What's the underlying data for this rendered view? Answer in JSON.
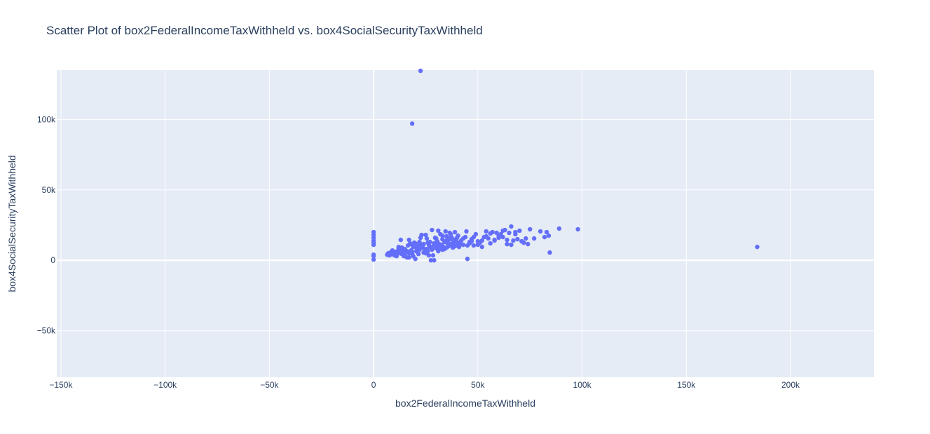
{
  "chart_data": {
    "type": "scatter",
    "title": "Scatter Plot of box2FederalIncomeTaxWithheld vs. box4SocialSecurityTaxWithheld",
    "xlabel": "box2FederalIncomeTaxWithheld",
    "ylabel": "box4SocialSecurityTaxWithheld",
    "xlim": [
      -152000,
      240000
    ],
    "ylim": [
      -83000,
      135000
    ],
    "x_ticks": [
      -150000,
      -100000,
      -50000,
      0,
      50000,
      100000,
      150000,
      200000
    ],
    "x_tick_labels": [
      "−150k",
      "−100k",
      "−50k",
      "0",
      "50k",
      "100k",
      "150k",
      "200k"
    ],
    "y_ticks": [
      -50000,
      0,
      50000,
      100000
    ],
    "y_tick_labels": [
      "−50k",
      "0",
      "50k",
      "100k"
    ],
    "grid": true,
    "colors": {
      "marker": "#636efa",
      "plot_bg": "#e5ecf6",
      "grid": "#ffffff",
      "text": "#2a3f5f"
    },
    "series": [
      {
        "points": [
          [
            22500,
            134500
          ],
          [
            18500,
            97000
          ],
          [
            184000,
            9500
          ],
          [
            98000,
            22000
          ],
          [
            89000,
            22500
          ],
          [
            0,
            20000
          ],
          [
            0,
            18000
          ],
          [
            0,
            16000
          ],
          [
            0,
            14000
          ],
          [
            0,
            12500
          ],
          [
            0,
            11000
          ],
          [
            0,
            4000
          ],
          [
            0,
            3000
          ],
          [
            0,
            500
          ],
          [
            7000,
            5000
          ],
          [
            8000,
            4000
          ],
          [
            9000,
            7000
          ],
          [
            9500,
            5500
          ],
          [
            10000,
            3500
          ],
          [
            11000,
            4500
          ],
          [
            11500,
            6500
          ],
          [
            12000,
            5000
          ],
          [
            12500,
            7500
          ],
          [
            13000,
            14500
          ],
          [
            13500,
            9000
          ],
          [
            14000,
            5500
          ],
          [
            14500,
            3000
          ],
          [
            15000,
            8000
          ],
          [
            15500,
            6000
          ],
          [
            16000,
            2000
          ],
          [
            16500,
            10500
          ],
          [
            17000,
            14500
          ],
          [
            17500,
            12000
          ],
          [
            18000,
            7000
          ],
          [
            18500,
            4500
          ],
          [
            19000,
            9500
          ],
          [
            19500,
            12500
          ],
          [
            20000,
            1000
          ],
          [
            20500,
            6500
          ],
          [
            21000,
            8500
          ],
          [
            21500,
            10500
          ],
          [
            22000,
            13000
          ],
          [
            22500,
            16000
          ],
          [
            23000,
            18000
          ],
          [
            23500,
            9000
          ],
          [
            24000,
            11500
          ],
          [
            24500,
            7000
          ],
          [
            25000,
            5000
          ],
          [
            25500,
            15500
          ],
          [
            26000,
            12500
          ],
          [
            26500,
            3500
          ],
          [
            27000,
            9500
          ],
          [
            27500,
            0
          ],
          [
            28000,
            21500
          ],
          [
            28500,
            3500
          ],
          [
            29000,
            0
          ],
          [
            29500,
            16000
          ],
          [
            30000,
            10500
          ],
          [
            30500,
            13500
          ],
          [
            31000,
            21000
          ],
          [
            31500,
            8500
          ],
          [
            32000,
            18500
          ],
          [
            32500,
            11000
          ],
          [
            33000,
            15000
          ],
          [
            33500,
            9500
          ],
          [
            34000,
            13000
          ],
          [
            34500,
            20500
          ],
          [
            35000,
            17000
          ],
          [
            35500,
            12000
          ],
          [
            36000,
            14500
          ],
          [
            36500,
            19500
          ],
          [
            37000,
            11500
          ],
          [
            37500,
            16000
          ],
          [
            38000,
            9000
          ],
          [
            38500,
            13500
          ],
          [
            39000,
            20000
          ],
          [
            39500,
            15000
          ],
          [
            40000,
            10500
          ],
          [
            40500,
            17500
          ],
          [
            41000,
            12500
          ],
          [
            42000,
            14000
          ],
          [
            43000,
            11000
          ],
          [
            44000,
            16500
          ],
          [
            44500,
            20500
          ],
          [
            45000,
            1000
          ],
          [
            46000,
            13000
          ],
          [
            47000,
            15000
          ],
          [
            48000,
            10500
          ],
          [
            49000,
            18500
          ],
          [
            50000,
            13500
          ],
          [
            51000,
            12500
          ],
          [
            52000,
            9500
          ],
          [
            53000,
            16500
          ],
          [
            54000,
            20500
          ],
          [
            55000,
            15500
          ],
          [
            56000,
            12000
          ],
          [
            57000,
            20000
          ],
          [
            58000,
            14500
          ],
          [
            59000,
            19500
          ],
          [
            60000,
            17000
          ],
          [
            61000,
            18500
          ],
          [
            62000,
            16500
          ],
          [
            63000,
            21500
          ],
          [
            64000,
            11500
          ],
          [
            65000,
            19500
          ],
          [
            66000,
            24000
          ],
          [
            67000,
            14000
          ],
          [
            68000,
            20000
          ],
          [
            69000,
            15000
          ],
          [
            70000,
            21000
          ],
          [
            71000,
            13500
          ],
          [
            72000,
            12500
          ],
          [
            73000,
            15500
          ],
          [
            74000,
            11500
          ],
          [
            75000,
            22000
          ],
          [
            77000,
            15500
          ],
          [
            80000,
            20500
          ],
          [
            82000,
            16500
          ],
          [
            83000,
            20000
          ],
          [
            84000,
            17500
          ],
          [
            84500,
            5500
          ],
          [
            8000,
            5500
          ],
          [
            9000,
            4500
          ],
          [
            10500,
            6000
          ],
          [
            12000,
            8500
          ],
          [
            13500,
            4500
          ],
          [
            14500,
            7500
          ],
          [
            16000,
            6500
          ],
          [
            17000,
            5000
          ],
          [
            18000,
            11500
          ],
          [
            19000,
            3000
          ],
          [
            20000,
            12000
          ],
          [
            21000,
            6000
          ],
          [
            22000,
            7500
          ],
          [
            23000,
            11000
          ],
          [
            24000,
            8500
          ],
          [
            25000,
            18000
          ],
          [
            26000,
            6500
          ],
          [
            27000,
            13000
          ],
          [
            28000,
            7500
          ],
          [
            29000,
            12000
          ],
          [
            30000,
            15500
          ],
          [
            31000,
            6500
          ],
          [
            32000,
            10000
          ],
          [
            33000,
            17500
          ],
          [
            34000,
            8000
          ],
          [
            35000,
            14000
          ],
          [
            36000,
            10000
          ],
          [
            37000,
            18500
          ],
          [
            38000,
            12000
          ],
          [
            39000,
            10000
          ],
          [
            40000,
            16000
          ],
          [
            41000,
            9500
          ],
          [
            42000,
            11500
          ],
          [
            43000,
            15500
          ],
          [
            45000,
            10500
          ],
          [
            46000,
            12000
          ],
          [
            47000,
            13500
          ],
          [
            48000,
            16500
          ],
          [
            50000,
            11000
          ],
          [
            52000,
            14000
          ],
          [
            54000,
            17000
          ],
          [
            56000,
            19000
          ],
          [
            58000,
            14000
          ],
          [
            60000,
            16000
          ],
          [
            62000,
            21000
          ],
          [
            64000,
            14500
          ],
          [
            66000,
            11000
          ],
          [
            68000,
            18500
          ],
          [
            6500,
            4000
          ],
          [
            7500,
            3500
          ],
          [
            11000,
            3000
          ],
          [
            12000,
            9500
          ],
          [
            15000,
            4500
          ],
          [
            17000,
            2000
          ],
          [
            18500,
            6000
          ],
          [
            20500,
            9000
          ],
          [
            21500,
            4500
          ],
          [
            22500,
            10000
          ],
          [
            24000,
            5500
          ],
          [
            25500,
            8000
          ],
          [
            26500,
            11000
          ],
          [
            28000,
            9500
          ],
          [
            30000,
            8500
          ],
          [
            31500,
            11500
          ],
          [
            33000,
            7500
          ],
          [
            35000,
            9000
          ],
          [
            36500,
            15500
          ],
          [
            38000,
            14500
          ],
          [
            40000,
            12500
          ]
        ]
      }
    ]
  }
}
